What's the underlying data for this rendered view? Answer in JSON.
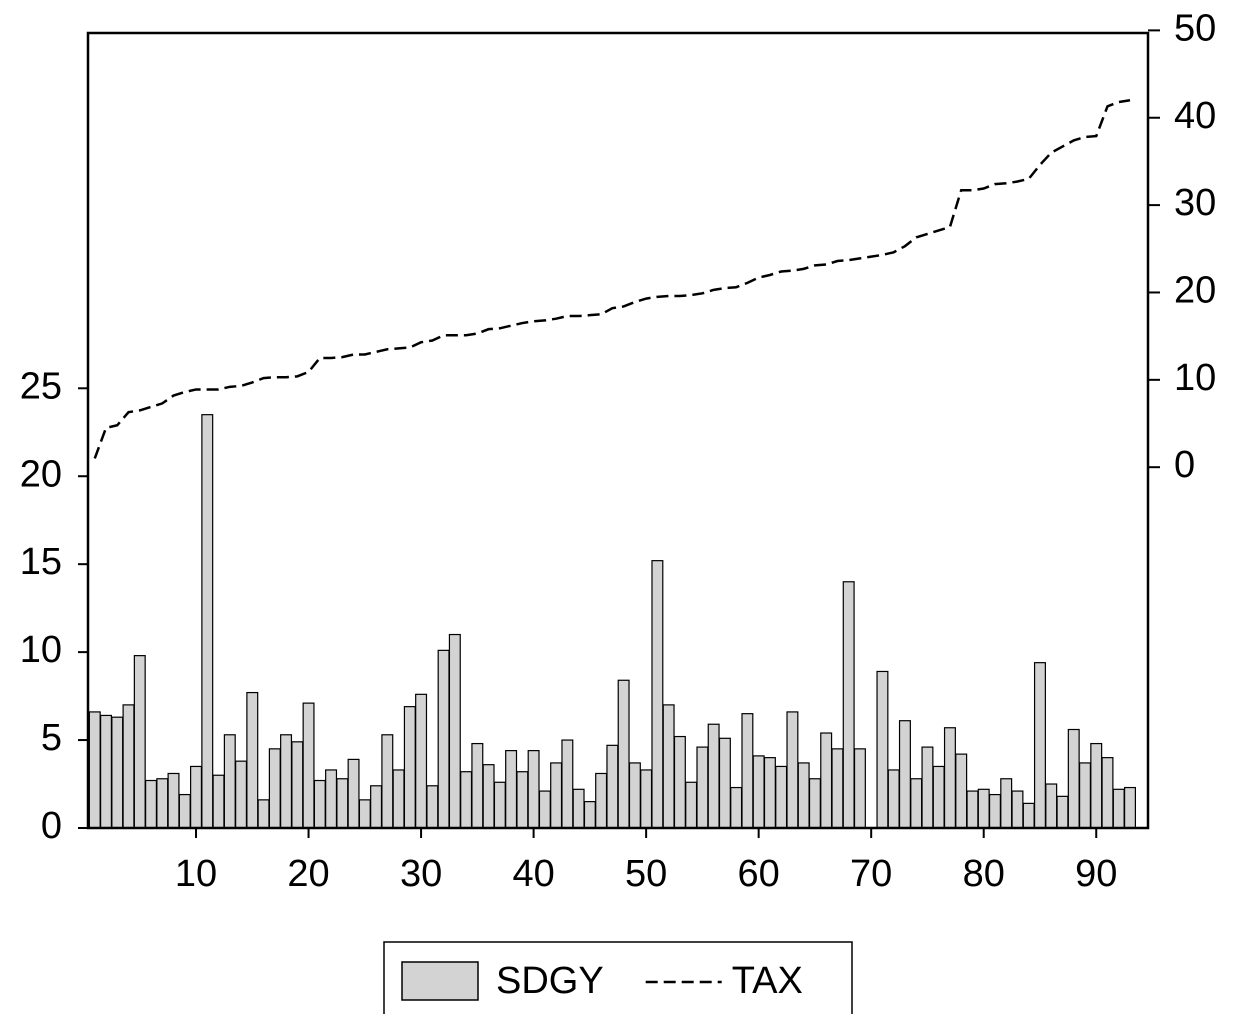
{
  "chart_data": {
    "type": "bar-line",
    "x": [
      1,
      2,
      3,
      4,
      5,
      6,
      7,
      8,
      9,
      10,
      11,
      12,
      13,
      14,
      15,
      16,
      17,
      18,
      19,
      20,
      21,
      22,
      23,
      24,
      25,
      26,
      27,
      28,
      29,
      30,
      31,
      32,
      33,
      34,
      35,
      36,
      37,
      38,
      39,
      40,
      41,
      42,
      43,
      44,
      45,
      46,
      47,
      48,
      49,
      50,
      51,
      52,
      53,
      54,
      55,
      56,
      57,
      58,
      59,
      60,
      61,
      62,
      63,
      64,
      65,
      66,
      67,
      68,
      69,
      70,
      71,
      72,
      73,
      74,
      75,
      76,
      77,
      78,
      79,
      80,
      81,
      82,
      83,
      84,
      85,
      86,
      87,
      88,
      89,
      90,
      91,
      92,
      93
    ],
    "series": [
      {
        "name": "SDGY",
        "type": "bar",
        "color": "#d3d3d3",
        "axis": "y",
        "values": [
          6.6,
          6.4,
          6.3,
          7.0,
          9.8,
          2.7,
          2.8,
          3.1,
          1.9,
          3.5,
          23.5,
          3.0,
          5.3,
          3.8,
          7.7,
          1.6,
          4.5,
          5.3,
          4.9,
          7.1,
          2.7,
          3.3,
          2.8,
          3.9,
          1.6,
          2.4,
          5.3,
          3.3,
          6.9,
          7.6,
          2.4,
          10.1,
          11.0,
          3.2,
          4.8,
          3.6,
          2.6,
          4.4,
          3.2,
          4.4,
          2.1,
          3.7,
          5.0,
          2.2,
          1.5,
          3.1,
          4.7,
          8.4,
          3.7,
          3.3,
          15.2,
          7.0,
          5.2,
          2.6,
          4.6,
          5.9,
          5.1,
          2.3,
          6.5,
          4.1,
          4.0,
          3.5,
          6.6,
          3.7,
          2.8,
          5.4,
          4.5,
          14.0,
          4.5,
          null,
          8.9,
          3.3,
          6.1,
          2.8,
          4.6,
          3.5,
          5.7,
          4.2,
          2.1,
          2.2,
          1.9,
          2.8,
          2.1,
          1.4,
          9.4,
          2.5,
          1.8,
          5.6,
          3.7,
          4.8,
          4.0,
          2.2,
          2.3
        ]
      },
      {
        "name": "TAX",
        "type": "line",
        "color": "#000000",
        "dashed": true,
        "axis": "y2",
        "values": [
          1.0,
          4.5,
          4.8,
          6.3,
          6.5,
          6.9,
          7.3,
          8.2,
          8.6,
          8.9,
          8.9,
          8.9,
          9.2,
          9.3,
          9.7,
          10.2,
          10.3,
          10.3,
          10.4,
          10.9,
          12.5,
          12.5,
          12.6,
          12.9,
          12.9,
          13.2,
          13.5,
          13.6,
          13.7,
          14.3,
          14.5,
          15.1,
          15.1,
          15.1,
          15.3,
          15.8,
          15.9,
          16.2,
          16.5,
          16.7,
          16.8,
          17.0,
          17.3,
          17.3,
          17.4,
          17.5,
          18.2,
          18.4,
          18.9,
          19.3,
          19.5,
          19.6,
          19.6,
          19.7,
          19.9,
          20.3,
          20.5,
          20.6,
          21.1,
          21.7,
          22.0,
          22.4,
          22.5,
          22.7,
          23.1,
          23.2,
          23.6,
          23.7,
          23.9,
          24.1,
          24.3,
          24.6,
          25.3,
          26.3,
          26.7,
          27.1,
          27.5,
          31.7,
          31.7,
          31.9,
          32.4,
          32.5,
          32.7,
          33.0,
          34.6,
          36.0,
          36.7,
          37.4,
          37.8,
          37.9,
          41.3,
          41.8,
          42.0
        ]
      }
    ],
    "xlim": [
      0.4,
      94.6
    ],
    "xticks": [
      10,
      20,
      30,
      40,
      50,
      60,
      70,
      80,
      90
    ],
    "ylim": [
      0,
      45.2
    ],
    "yticks": [
      0,
      5,
      10,
      15,
      20,
      25
    ],
    "y2lim": [
      -41.3,
      49.7
    ],
    "y2ticks": [
      0,
      10,
      20,
      30,
      40,
      50
    ],
    "legend": "bottom"
  }
}
